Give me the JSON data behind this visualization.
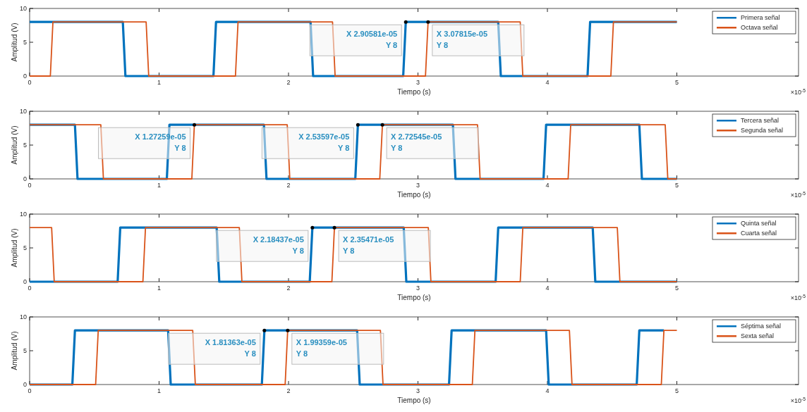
{
  "chart_data": [
    {
      "type": "line",
      "xlabel": "Tiempo (s)",
      "ylabel": "Amplitud (V)",
      "xlim": [
        0,
        5.94
      ],
      "ylim": [
        0,
        10
      ],
      "xticks": [
        0,
        1,
        2,
        3,
        4,
        5
      ],
      "yticks": [
        0,
        5,
        10
      ],
      "legend": "top right",
      "series": [
        {
          "name": "Primera señal",
          "color": "#0072bd",
          "x": [
            0,
            0.72,
            0.74,
            1.42,
            1.44,
            2.17,
            2.19,
            2.886,
            2.90581,
            3.62,
            3.64,
            4.31,
            4.33,
            5
          ],
          "values": [
            8,
            8,
            0,
            0,
            8,
            8,
            0,
            0,
            8,
            8,
            0,
            0,
            8,
            8
          ]
        },
        {
          "name": "Octava señal",
          "color": "#d95319",
          "x": [
            0,
            0.16,
            0.18,
            0.9,
            0.92,
            1.59,
            1.61,
            2.34,
            2.36,
            3.058,
            3.07815,
            3.79,
            3.81,
            4.49,
            4.51,
            5
          ],
          "values": [
            0,
            0,
            8,
            8,
            0,
            0,
            8,
            8,
            0,
            0,
            8,
            8,
            0,
            0,
            8,
            8
          ]
        }
      ],
      "annotations": [
        {
          "text": "X 2.90581e-05\nY 8",
          "x": 2.90581,
          "y": 8
        },
        {
          "text": "X 3.07815e-05\nY 8",
          "x": 3.07815,
          "y": 8
        },
        "×10$^{-5}$"
      ]
    },
    {
      "type": "line",
      "xlabel": "Tiempo (s)",
      "ylabel": "Amplitud (V)",
      "xlim": [
        0,
        5.94
      ],
      "ylim": [
        0,
        10
      ],
      "xticks": [
        0,
        1,
        2,
        3,
        4,
        5
      ],
      "yticks": [
        0,
        5,
        10
      ],
      "legend": "top right",
      "series": [
        {
          "name": "Tercera señal",
          "color": "#0072bd",
          "x": [
            0,
            0.35,
            0.37,
            1.06,
            1.08,
            1.81,
            1.83,
            2.516,
            2.53597,
            3.27,
            3.29,
            3.97,
            3.99,
            4.71,
            4.73,
            5
          ],
          "values": [
            8,
            8,
            0,
            0,
            8,
            8,
            0,
            0,
            8,
            8,
            0,
            0,
            8,
            8,
            0,
            0
          ]
        },
        {
          "name": "Segunda señal",
          "color": "#d95319",
          "x": [
            0,
            0.55,
            0.57,
            1.253,
            1.27259,
            1.99,
            2.01,
            2.705,
            2.72545,
            3.46,
            3.48,
            4.16,
            4.18,
            4.91,
            4.93,
            5
          ],
          "values": [
            8,
            8,
            0,
            0,
            8,
            8,
            0,
            0,
            8,
            8,
            0,
            0,
            8,
            8,
            0,
            0
          ]
        }
      ],
      "annotations": [
        {
          "text": "X 1.27259e-05\nY 8",
          "x": 1.27259,
          "y": 8
        },
        {
          "text": "X 2.53597e-05\nY 8",
          "x": 2.53597,
          "y": 8
        },
        {
          "text": "X 2.72545e-05\nY 8",
          "x": 2.72545,
          "y": 8
        },
        "×10$^{-5}$"
      ]
    },
    {
      "type": "line",
      "xlabel": "Tiempo (s)",
      "ylabel": "Amplitud (V)",
      "xlim": [
        0,
        5.94
      ],
      "ylim": [
        0,
        10
      ],
      "xticks": [
        0,
        1,
        2,
        3,
        4,
        5
      ],
      "yticks": [
        0,
        5,
        10
      ],
      "legend": "top right",
      "series": [
        {
          "name": "Quinta señal",
          "color": "#0072bd",
          "x": [
            0,
            0.68,
            0.7,
            1.445,
            1.465,
            2.164,
            2.18437,
            2.89,
            2.91,
            3.6,
            3.62,
            4.35,
            4.37,
            5
          ],
          "values": [
            0,
            0,
            8,
            8,
            0,
            0,
            8,
            8,
            0,
            0,
            8,
            8,
            0,
            0
          ]
        },
        {
          "name": "Cuarta señal",
          "color": "#d95319",
          "x": [
            0,
            0.17,
            0.19,
            0.875,
            0.895,
            1.62,
            1.64,
            2.335,
            2.35471,
            3.08,
            3.1,
            3.79,
            3.81,
            4.54,
            4.56,
            5
          ],
          "values": [
            8,
            8,
            0,
            0,
            8,
            8,
            0,
            0,
            8,
            8,
            0,
            0,
            8,
            8,
            0,
            0
          ]
        }
      ],
      "annotations": [
        {
          "text": "X 2.18437e-05\nY 8",
          "x": 2.18437,
          "y": 8
        },
        {
          "text": "X 2.35471e-05\nY 8",
          "x": 2.35471,
          "y": 8
        },
        "×10$^{-5}$"
      ]
    },
    {
      "type": "line",
      "xlabel": "Tiempo (s)",
      "ylabel": "Amplitud (V)",
      "xlim": [
        0,
        5.94
      ],
      "ylim": [
        0,
        10
      ],
      "xticks": [
        0,
        1,
        2,
        3,
        4,
        5
      ],
      "yticks": [
        0,
        5,
        10
      ],
      "legend": "top right",
      "series": [
        {
          "name": "Séptima señal",
          "color": "#0072bd",
          "x": [
            0,
            0.33,
            0.35,
            1.07,
            1.09,
            1.794,
            1.81363,
            2.53,
            2.55,
            3.24,
            3.26,
            3.99,
            4.01,
            4.69,
            4.71,
            4.9
          ],
          "values": [
            0,
            0,
            8,
            8,
            0,
            0,
            8,
            8,
            0,
            0,
            8,
            8,
            0,
            0,
            8,
            8
          ]
        },
        {
          "name": "Sexta señal",
          "color": "#d95319",
          "x": [
            0,
            0.51,
            0.53,
            1.26,
            1.28,
            1.974,
            1.99359,
            2.71,
            2.73,
            3.42,
            3.44,
            4.17,
            4.19,
            4.88,
            4.9,
            5
          ],
          "values": [
            0,
            0,
            8,
            8,
            0,
            0,
            8,
            8,
            0,
            0,
            8,
            8,
            0,
            0,
            8,
            8
          ]
        }
      ],
      "annotations": [
        {
          "text": "X 1.81363e-05\nY 8",
          "x": 1.81363,
          "y": 8
        },
        {
          "text": "X 1.99359e-05\nY 8",
          "x": 1.99359,
          "y": 8
        },
        "×10$^{-5}$"
      ]
    }
  ]
}
